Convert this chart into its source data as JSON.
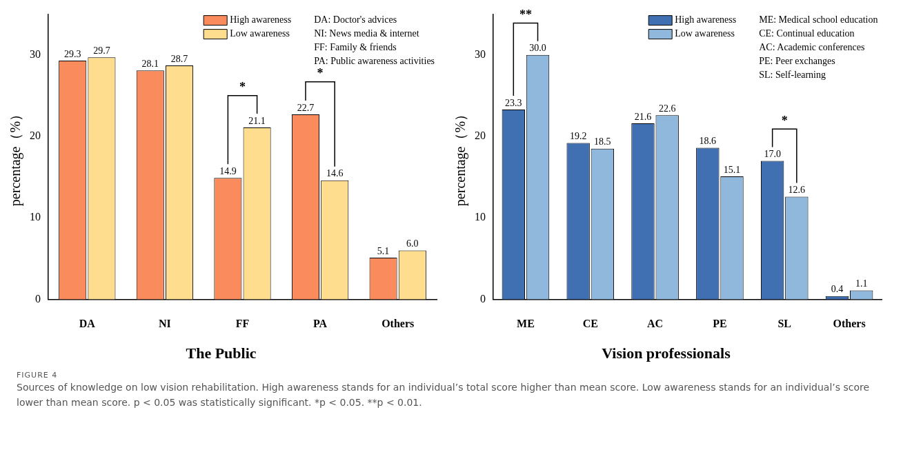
{
  "chart_data": [
    {
      "type": "bar",
      "title": "The Public",
      "ylabel": "percentage（%）",
      "categories": [
        "DA",
        "NI",
        "FF",
        "PA",
        "Others"
      ],
      "series": [
        {
          "name": "High awareness",
          "color": "#f98b5c",
          "values": [
            29.3,
            28.1,
            14.9,
            22.7,
            5.1
          ],
          "value_labels": [
            "29.3",
            "28.1",
            "14.9",
            "22.7",
            "5.1"
          ]
        },
        {
          "name": "Low awareness",
          "color": "#fedd8e",
          "values": [
            29.7,
            28.7,
            21.1,
            14.6,
            6.0
          ],
          "value_labels": [
            "29.7",
            "28.7",
            "21.1",
            "14.6",
            "6.0"
          ]
        }
      ],
      "ylim": [
        0,
        35
      ],
      "yticks": [
        0,
        10,
        20,
        30
      ],
      "grid": false,
      "legend": "top",
      "annotations": [
        "DA: Doctor's advices",
        "NI: News media & internet",
        "FF: Family & friends",
        "PA: Public awareness activities",
        "*",
        "*"
      ]
    },
    {
      "type": "bar",
      "title": "Vision professionals",
      "ylabel": "percentage（%）",
      "categories": [
        "ME",
        "CE",
        "AC",
        "PE",
        "SL",
        "Others"
      ],
      "series": [
        {
          "name": "High awareness",
          "color": "#4170b2",
          "values": [
            23.3,
            19.2,
            21.6,
            18.6,
            17.0,
            0.4
          ],
          "value_labels": [
            "23.3",
            "19.2",
            "21.6",
            "18.6",
            "17.0",
            "0.4"
          ]
        },
        {
          "name": "Low awareness",
          "color": "#8fb8dc",
          "values": [
            30.0,
            18.5,
            22.6,
            15.1,
            12.6,
            1.1
          ],
          "value_labels": [
            "30.0",
            "18.5",
            "22.6",
            "15.1",
            "12.6",
            "1.1"
          ]
        }
      ],
      "ylim": [
        0,
        35
      ],
      "yticks": [
        0,
        10,
        20,
        30
      ],
      "grid": false,
      "legend": "top",
      "annotations": [
        "ME: Medical school education",
        "CE: Continual education",
        "AC: Academic conferences",
        "PE: Peer exchanges",
        "SL: Self-learning",
        "**",
        "*"
      ]
    },
    {
      "type": "other",
      "title": "FIGURE 4",
      "annotations": [
        "Sources of knowledge on low vision rehabilitation. High awareness stands for an individual’s total score higher than mean score. Low awareness stands for an individual’s score lower than mean score. p < 0.05 was statistically significant. *p < 0.05. **p < 0.01."
      ]
    }
  ]
}
